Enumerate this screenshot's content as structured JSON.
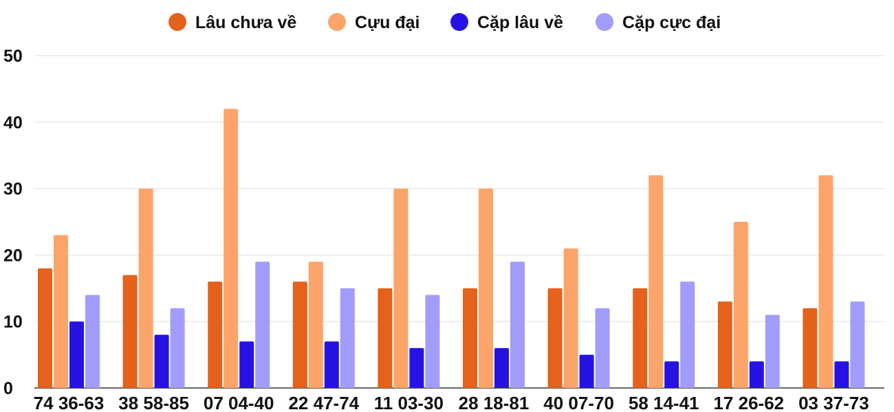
{
  "chart_data": {
    "type": "bar",
    "categories": [
      "74 36-63",
      "38 58-85",
      "07 04-40",
      "22 47-74",
      "11 03-30",
      "28 18-81",
      "40 07-70",
      "58 14-41",
      "17 26-62",
      "03 37-73"
    ],
    "series": [
      {
        "name": "Lâu chưa về",
        "color": "#e4621b",
        "values": [
          18,
          17,
          16,
          16,
          15,
          15,
          15,
          15,
          13,
          12
        ]
      },
      {
        "name": "Cựu đại",
        "color": "#fda46a",
        "values": [
          23,
          30,
          42,
          19,
          30,
          30,
          21,
          32,
          25,
          32
        ]
      },
      {
        "name": "Cặp lâu về",
        "color": "#2613e3",
        "values": [
          10,
          8,
          7,
          7,
          6,
          6,
          5,
          4,
          4,
          4
        ]
      },
      {
        "name": "Cặp cực đại",
        "color": "#a29cfb",
        "values": [
          14,
          12,
          19,
          15,
          14,
          19,
          12,
          16,
          11,
          13
        ]
      }
    ],
    "ylim": [
      0,
      50
    ],
    "yticks": [
      0,
      10,
      20,
      30,
      40,
      50
    ],
    "grid": true,
    "legend": "top-center"
  }
}
